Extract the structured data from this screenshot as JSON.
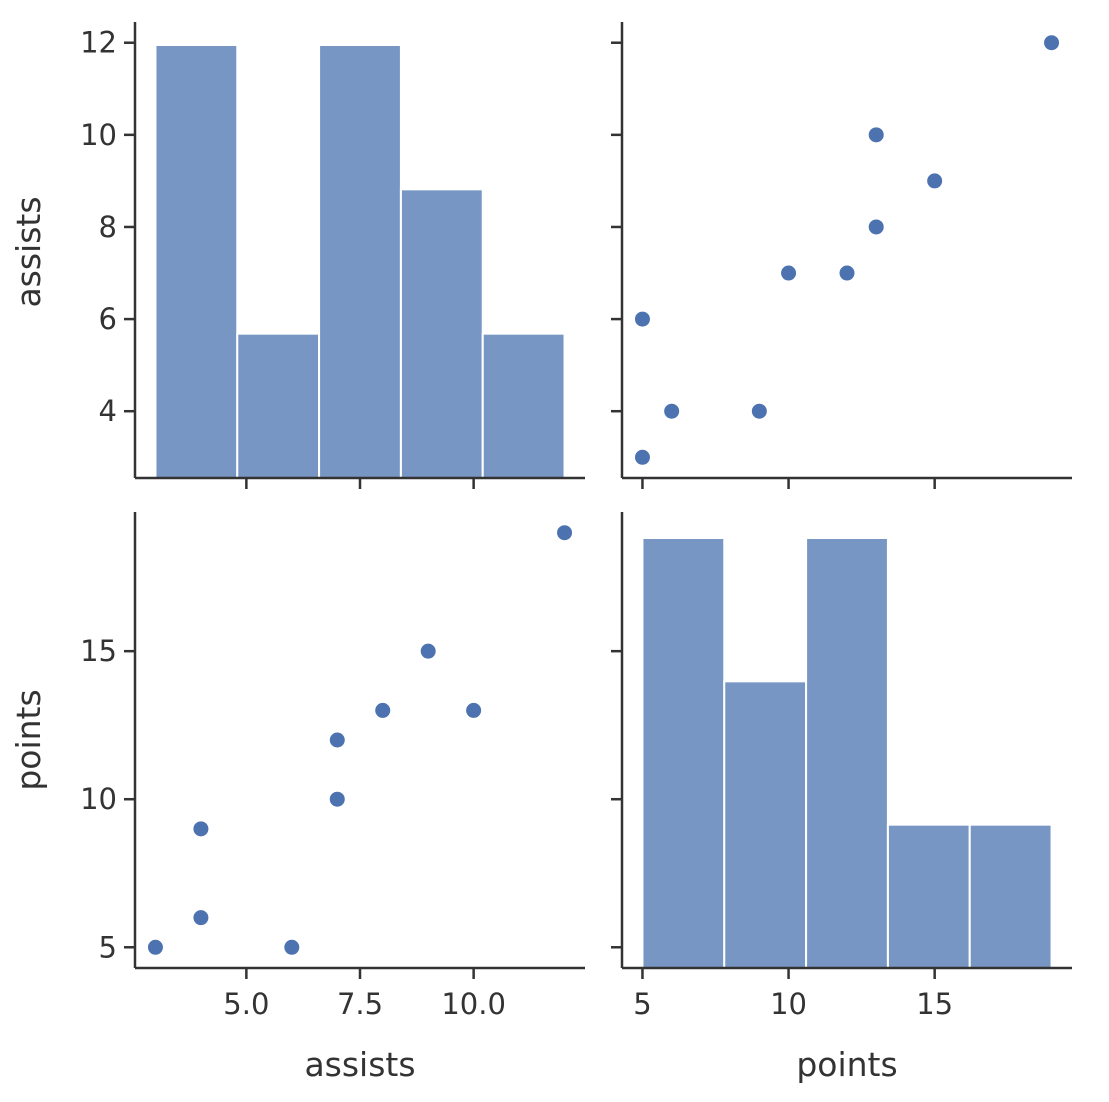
{
  "chart_data": {
    "type": "pairplot",
    "variables": [
      "assists",
      "points"
    ],
    "colors": {
      "bar": "#7896c4",
      "bar_edge": "#ffffff",
      "point": "#4c72b0",
      "axis": "#333333"
    },
    "grid": false,
    "data": {
      "assists": [
        3,
        4,
        4,
        6,
        7,
        7,
        8,
        9,
        10,
        12
      ],
      "points": [
        5,
        6,
        9,
        5,
        10,
        12,
        13,
        15,
        13,
        19
      ]
    },
    "histograms": {
      "assists": {
        "bin_edges": [
          3,
          4.8,
          6.6,
          8.4,
          10.2,
          12
        ],
        "counts": [
          3,
          1,
          3,
          2,
          1
        ]
      },
      "points": {
        "bin_edges": [
          5,
          7.8,
          10.6,
          13.4,
          16.2,
          19
        ],
        "counts": [
          3,
          2,
          3,
          1,
          1
        ]
      }
    },
    "axes": {
      "assists": {
        "range": [
          2.55,
          12.45
        ],
        "y_ticks": [
          4,
          6,
          8,
          10,
          12
        ],
        "y_tick_labels": [
          "4",
          "6",
          "8",
          "10",
          "12"
        ],
        "x_ticks": [
          5,
          7.5,
          10
        ],
        "x_tick_labels": [
          "5.0",
          "7.5",
          "10.0"
        ]
      },
      "points": {
        "range": [
          4.3,
          19.7
        ],
        "y_ticks": [
          5,
          10,
          15
        ],
        "y_tick_labels": [
          "5",
          "10",
          "15"
        ],
        "x_ticks": [
          5,
          10,
          15
        ],
        "x_tick_labels": [
          "5",
          "10",
          "15"
        ]
      }
    },
    "labels": {
      "assists": "assists",
      "points": "points"
    }
  }
}
